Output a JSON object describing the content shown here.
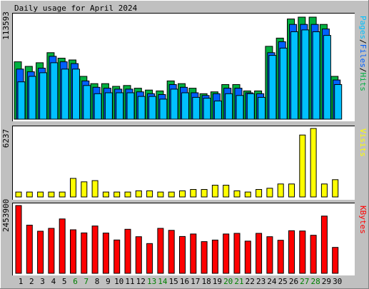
{
  "chart_data": {
    "type": "bar",
    "title": "Daily usage for April 2024",
    "categories": [
      "1",
      "2",
      "3",
      "4",
      "5",
      "6",
      "7",
      "8",
      "9",
      "10",
      "11",
      "12",
      "13",
      "14",
      "15",
      "16",
      "17",
      "18",
      "19",
      "20",
      "21",
      "22",
      "23",
      "24",
      "25",
      "26",
      "27",
      "28",
      "29",
      "30"
    ],
    "weekend_days": [
      "6",
      "7",
      "13",
      "14",
      "20",
      "21",
      "27",
      "28"
    ],
    "colors": {
      "hits": "#00b040",
      "files": "#0060ff",
      "pages": "#00c0ff",
      "visits": "#ffff00",
      "kbytes": "#ff0000",
      "weekday_label": "#000000",
      "weekend_label": "#008000"
    },
    "panels": [
      {
        "id": "usage",
        "ymax_label": "113593",
        "ymax": 113593,
        "legend": [
          {
            "text": "Pages",
            "color": "#00c0ff"
          },
          {
            "text": "/",
            "color": "#000000"
          },
          {
            "text": "Files",
            "color": "#0060ff"
          },
          {
            "text": "/",
            "color": "#000000"
          },
          {
            "text": "Hits",
            "color": "#00b040"
          }
        ],
        "series": [
          {
            "name": "Hits",
            "values": [
              63000,
              58000,
              62000,
              73000,
              67000,
              65000,
              47000,
              39000,
              39000,
              36000,
              37000,
              34000,
              32000,
              31000,
              42000,
              39000,
              34000,
              28000,
              30000,
              38000,
              38000,
              31000,
              31000,
              80000,
              89000,
              110000,
              112000,
              112000,
              104000,
              47000
            ]
          },
          {
            "name": "Files",
            "values": [
              55000,
              52000,
              56000,
              69000,
              63000,
              61000,
              42000,
              35000,
              34000,
              33000,
              33000,
              30000,
              28000,
              27000,
              38000,
              35000,
              29000,
              26000,
              28000,
              34000,
              34000,
              29000,
              28000,
              73000,
              85000,
              104000,
              104000,
              104000,
              99000,
              43000
            ]
          },
          {
            "name": "Pages",
            "values": [
              41000,
              47000,
              51000,
              62000,
              55000,
              55000,
              37000,
              28000,
              29000,
              29000,
              29000,
              25000,
              25000,
              22000,
              33000,
              29000,
              24000,
              23000,
              20000,
              28000,
              26000,
              28000,
              24000,
              70000,
              78000,
              96000,
              98000,
              96000,
              92000,
              38000
            ]
          }
        ]
      },
      {
        "id": "visits",
        "ymax_label": "6237",
        "ymax": 6237,
        "legend": [
          {
            "text": "Visits",
            "color": "#ffff00"
          }
        ],
        "series": [
          {
            "name": "Visits",
            "values": [
              450,
              450,
              450,
              450,
              450,
              1690,
              1380,
              1490,
              450,
              450,
              450,
              560,
              560,
              450,
              450,
              560,
              680,
              680,
              1070,
              1070,
              560,
              450,
              680,
              790,
              1180,
              1180,
              5640,
              6237,
              1180,
              1570
            ]
          }
        ]
      },
      {
        "id": "kbytes",
        "ymax_label": "2453900",
        "ymax": 2453900,
        "legend": [
          {
            "text": "KBytes",
            "color": "#ff0000"
          }
        ],
        "series": [
          {
            "name": "KBytes",
            "values": [
              2453900,
              1743000,
              1524000,
              1628000,
              1968000,
              1575000,
              1461000,
              1712000,
              1456000,
              1205000,
              1595000,
              1325000,
              1076000,
              1628000,
              1556000,
              1334000,
              1422000,
              1147000,
              1204000,
              1422000,
              1447000,
              1164000,
              1446000,
              1325000,
              1197000,
              1543000,
              1531000,
              1378000,
              2072000,
              938000
            ]
          }
        ]
      }
    ]
  }
}
